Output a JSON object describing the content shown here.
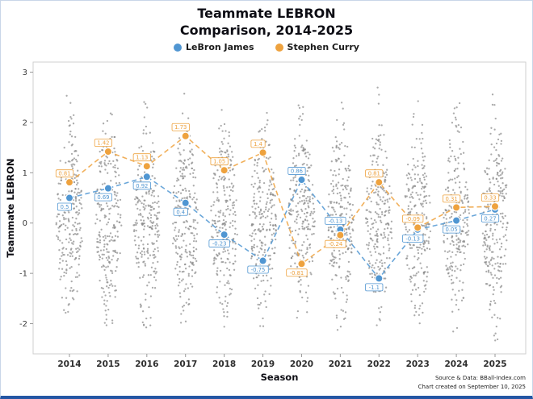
{
  "title": {
    "line1": "Teammate LEBRON",
    "line2": "Comparison, 2014-2025"
  },
  "legend": {
    "items": [
      {
        "label": "LeBron James",
        "color": "#5096d2"
      },
      {
        "label": "Stephen Curry",
        "color": "#eea23e"
      }
    ]
  },
  "chart_data": {
    "type": "scatter",
    "title": "Teammate LEBRON Comparison, 2014-2025",
    "xlabel": "Season",
    "ylabel": "Teammate LEBRON",
    "ylim": [
      -2.6,
      3.2
    ],
    "yticks": [
      3,
      2,
      1,
      0,
      -1,
      -2
    ],
    "legend_position": "top-center",
    "grid": false,
    "categories": [
      "2014",
      "2015",
      "2016",
      "2017",
      "2018",
      "2019",
      "2020",
      "2021",
      "2022",
      "2023",
      "2024",
      "2025"
    ],
    "series": [
      {
        "name": "LeBron James",
        "color": "#5096d2",
        "values": [
          0.5,
          0.69,
          0.92,
          0.4,
          -0.23,
          -0.75,
          0.86,
          -0.13,
          -1.1,
          -0.13,
          0.05,
          0.27
        ]
      },
      {
        "name": "Stephen Curry",
        "color": "#eea23e",
        "values": [
          0.81,
          1.42,
          1.13,
          1.73,
          1.05,
          1.4,
          -0.81,
          -0.24,
          0.81,
          -0.09,
          0.31,
          0.33
        ]
      }
    ],
    "distribution": {
      "marker_color": "#8a8a8a",
      "approx_range": [
        -2.4,
        3.0
      ],
      "note": "gray beeswarm of all league players per season"
    }
  },
  "footer": {
    "source": "Source & Data: BBall-Index.com",
    "created": "Chart created on September 10, 2025"
  }
}
